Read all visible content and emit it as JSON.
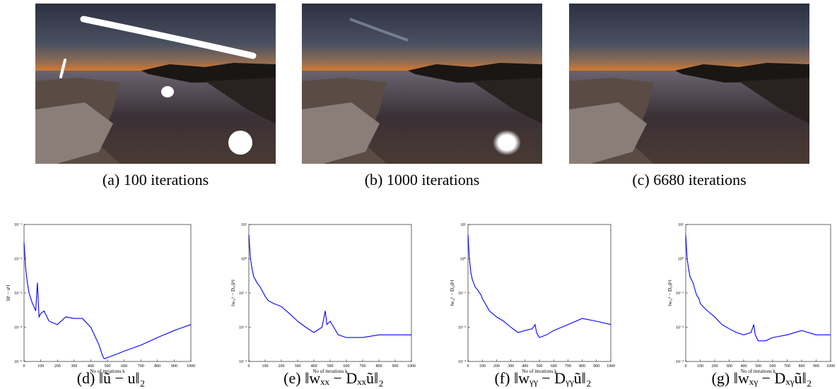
{
  "figures": [
    {
      "caption": "(a) 100 iterations"
    },
    {
      "caption": "(b) 1000 iterations"
    },
    {
      "caption": "(c) 6680 iterations"
    }
  ],
  "chart_data": [
    {
      "type": "line",
      "caption": "(d) ‖ũ − u‖₂",
      "ylabel": "‖ũᵏ − uᵏ‖",
      "xlabel": "No of iterations k",
      "log_y": true,
      "x": [
        0,
        10,
        20,
        30,
        50,
        70,
        80,
        90,
        100,
        120,
        150,
        200,
        250,
        300,
        350,
        400,
        450,
        470,
        480,
        500,
        550,
        600,
        700,
        800,
        900,
        1000
      ],
      "series": [
        {
          "color": "#0000ff",
          "values": [
            0.03,
            0.005,
            0.002,
            0.001,
            0.0005,
            0.0003,
            0.002,
            0.0002,
            0.00025,
            0.0003,
            0.00015,
            0.00012,
            0.0002,
            0.00018,
            0.00018,
            0.0001,
            3e-05,
            1.5e-05,
            1.2e-05,
            1.3e-05,
            1.6e-05,
            2e-05,
            3e-05,
            5e-05,
            8e-05,
            0.00012
          ]
        }
      ],
      "xlim": [
        0,
        1000
      ],
      "ylim": [
        1e-05,
        0.1
      ],
      "xticks": [
        0,
        100,
        200,
        300,
        400,
        500,
        600,
        700,
        800,
        900,
        1000
      ],
      "yticks": [
        {
          "value": 1e-05,
          "label": "10⁻⁵"
        },
        {
          "value": 0.0001,
          "label": "10⁻⁴"
        },
        {
          "value": 0.001,
          "label": "10⁻³"
        },
        {
          "value": 0.01,
          "label": "10⁻²"
        },
        {
          "value": 0.1,
          "label": "10⁻¹"
        }
      ]
    },
    {
      "type": "line",
      "caption": "(e) ‖wₓₓ − Dₓₓũ‖₂",
      "ylabel": "‖wₓₓᵏ − Dₓₓũᵏ‖",
      "xlabel": "No of iterations k",
      "log_y": true,
      "x": [
        0,
        10,
        20,
        30,
        50,
        70,
        80,
        90,
        100,
        120,
        150,
        200,
        250,
        300,
        350,
        400,
        450,
        470,
        480,
        500,
        550,
        600,
        700,
        800,
        900,
        1000
      ],
      "series": [
        {
          "color": "#0000ff",
          "values": [
            5,
            1,
            0.5,
            0.3,
            0.2,
            0.15,
            0.12,
            0.1,
            0.08,
            0.06,
            0.05,
            0.04,
            0.025,
            0.015,
            0.01,
            0.007,
            0.01,
            0.03,
            0.012,
            0.015,
            0.006,
            0.005,
            0.005,
            0.006,
            0.006,
            0.006
          ]
        }
      ],
      "xlim": [
        0,
        1000
      ],
      "ylim": [
        0.001,
        10
      ],
      "xticks": [
        0,
        100,
        200,
        300,
        400,
        500,
        600,
        700,
        800,
        900,
        1000
      ],
      "yticks": [
        {
          "value": 0.001,
          "label": "10⁻³"
        },
        {
          "value": 0.01,
          "label": "10⁻²"
        },
        {
          "value": 0.1,
          "label": "10⁻¹"
        },
        {
          "value": 1,
          "label": "10⁰"
        },
        {
          "value": 10,
          "label": "10¹"
        }
      ]
    },
    {
      "type": "line",
      "caption": "(f) ‖wᵧᵧ − Dᵧᵧũ‖₂",
      "ylabel": "‖wᵧᵧᵏ − Dᵧᵧũᵏ‖",
      "xlabel": "No of iterations k",
      "log_y": true,
      "x": [
        0,
        10,
        20,
        30,
        50,
        70,
        80,
        90,
        100,
        120,
        150,
        200,
        250,
        300,
        350,
        400,
        450,
        470,
        480,
        500,
        550,
        600,
        700,
        800,
        900,
        1000
      ],
      "series": [
        {
          "color": "#0000ff",
          "values": [
            5,
            1,
            0.4,
            0.25,
            0.15,
            0.12,
            0.1,
            0.09,
            0.07,
            0.05,
            0.03,
            0.02,
            0.015,
            0.01,
            0.007,
            0.008,
            0.009,
            0.012,
            0.007,
            0.005,
            0.006,
            0.008,
            0.012,
            0.018,
            0.015,
            0.012
          ]
        }
      ],
      "xlim": [
        0,
        1000
      ],
      "ylim": [
        0.001,
        10
      ],
      "xticks": [
        0,
        100,
        200,
        300,
        400,
        500,
        600,
        700,
        800,
        900,
        1000
      ],
      "yticks": [
        {
          "value": 0.001,
          "label": "10⁻³"
        },
        {
          "value": 0.01,
          "label": "10⁻²"
        },
        {
          "value": 0.1,
          "label": "10⁻¹"
        },
        {
          "value": 1,
          "label": "10⁰"
        },
        {
          "value": 10,
          "label": "10¹"
        }
      ]
    },
    {
      "type": "line",
      "caption": "(g) ‖wₓᵧ − Dₓᵧũ‖₂",
      "ylabel": "‖wₓᵧᵏ − Dₓᵧũᵏ‖",
      "xlabel": "No of iterations k",
      "log_y": true,
      "x": [
        0,
        10,
        20,
        30,
        50,
        70,
        80,
        90,
        100,
        120,
        150,
        200,
        250,
        300,
        350,
        400,
        450,
        470,
        480,
        500,
        550,
        600,
        700,
        800,
        900,
        1000
      ],
      "series": [
        {
          "color": "#0000ff",
          "values": [
            5,
            1,
            0.5,
            0.3,
            0.2,
            0.1,
            0.08,
            0.07,
            0.05,
            0.04,
            0.03,
            0.02,
            0.012,
            0.009,
            0.007,
            0.006,
            0.007,
            0.012,
            0.006,
            0.004,
            0.004,
            0.005,
            0.006,
            0.008,
            0.006,
            0.006
          ]
        }
      ],
      "xlim": [
        0,
        1000
      ],
      "ylim": [
        0.001,
        10
      ],
      "xticks": [
        0,
        100,
        200,
        300,
        400,
        500,
        600,
        700,
        800,
        900,
        1000
      ],
      "yticks": [
        {
          "value": 0.001,
          "label": "10⁻³"
        },
        {
          "value": 0.01,
          "label": "10⁻²"
        },
        {
          "value": 0.1,
          "label": "10⁻¹"
        },
        {
          "value": 1,
          "label": "10⁰"
        },
        {
          "value": 10,
          "label": "10¹"
        }
      ]
    }
  ]
}
